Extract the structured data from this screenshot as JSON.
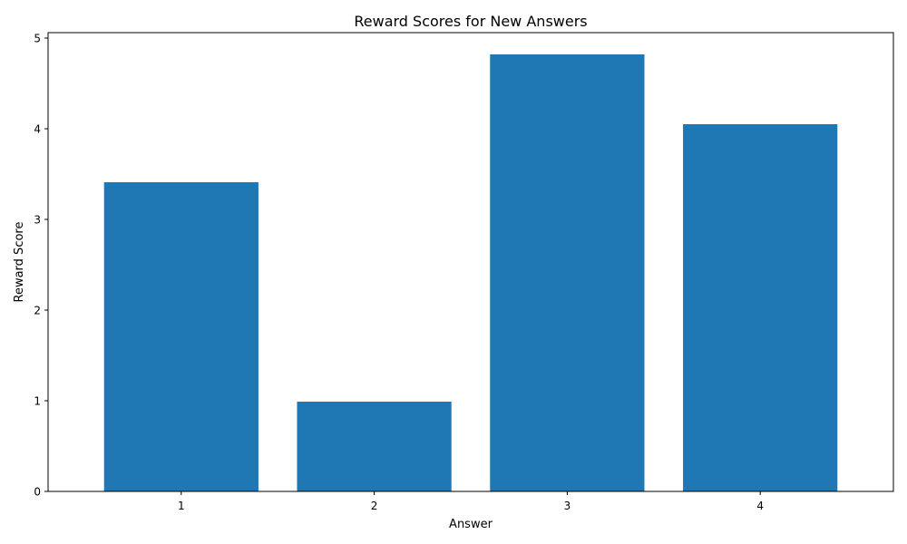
{
  "chart_data": {
    "type": "bar",
    "title": "Reward Scores for New Answers",
    "xlabel": "Answer",
    "ylabel": "Reward Score",
    "categories": [
      "1",
      "2",
      "3",
      "4"
    ],
    "values": [
      3.41,
      0.99,
      4.82,
      4.05
    ],
    "ylim": [
      0,
      5.06
    ],
    "yticks": [
      0,
      1,
      2,
      3,
      4,
      5
    ],
    "bar_color": "#1f77b4",
    "grid": false,
    "legend": "none"
  }
}
